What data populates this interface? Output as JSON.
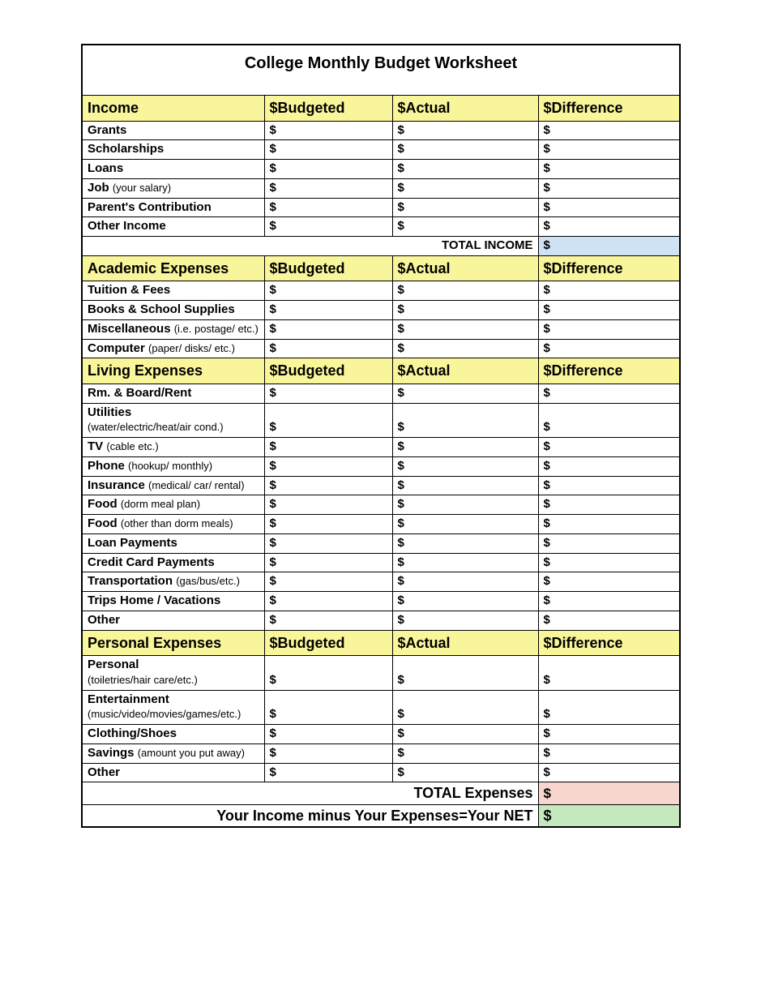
{
  "title": "College Monthly Budget Worksheet",
  "colors": {
    "header_bg": "#f9f59a",
    "total_income_bg": "#cfe2f3",
    "total_expense_bg": "#f8d6d0",
    "net_bg": "#c5e8bf",
    "border": "#000000"
  },
  "column_headers": {
    "budgeted": "$Budgeted",
    "actual": "$Actual",
    "difference": "$Difference"
  },
  "currency_symbol": "$",
  "sections": [
    {
      "name": "Income",
      "rows": [
        {
          "label": "Grants",
          "sub": ""
        },
        {
          "label": "Scholarships",
          "sub": ""
        },
        {
          "label": "Loans",
          "sub": ""
        },
        {
          "label": "Job",
          "sub": "(your salary)"
        },
        {
          "label": "Parent's Contribution",
          "sub": ""
        },
        {
          "label": "Other Income",
          "sub": ""
        }
      ]
    },
    {
      "name": "Academic Expenses",
      "rows": [
        {
          "label": "Tuition & Fees",
          "sub": ""
        },
        {
          "label": "Books & School Supplies",
          "sub": ""
        },
        {
          "label": "Miscellaneous",
          "sub": "(i.e. postage/ etc.)"
        },
        {
          "label": "Computer",
          "sub": "(paper/ disks/ etc.)"
        }
      ]
    },
    {
      "name": "Living Expenses",
      "rows": [
        {
          "label": "Rm. & Board/Rent",
          "sub": ""
        },
        {
          "label": "Utilities",
          "sub": "(water/electric/heat/air cond.)",
          "two_line": true
        },
        {
          "label": "TV",
          "sub": "(cable etc.)"
        },
        {
          "label": "Phone",
          "sub": "(hookup/ monthly)"
        },
        {
          "label": "Insurance",
          "sub": "(medical/ car/ rental)"
        },
        {
          "label": "Food",
          "sub": "(dorm meal plan)"
        },
        {
          "label": "Food",
          "sub": "(other than dorm meals)"
        },
        {
          "label": "Loan Payments",
          "sub": ""
        },
        {
          "label": "Credit Card Payments",
          "sub": ""
        },
        {
          "label": "Transportation",
          "sub": "(gas/bus/etc.)"
        },
        {
          "label": "Trips Home / Vacations",
          "sub": ""
        },
        {
          "label": "Other",
          "sub": ""
        }
      ]
    },
    {
      "name": "Personal Expenses",
      "rows": [
        {
          "label": "Personal",
          "sub": "(toiletries/hair care/etc.)",
          "two_line": true
        },
        {
          "label": "Entertainment",
          "sub": "(music/video/movies/games/etc.)",
          "two_line": true
        },
        {
          "label": "Clothing/Shoes",
          "sub": ""
        },
        {
          "label": "Savings",
          "sub": "(amount you put away)"
        },
        {
          "label": "Other",
          "sub": ""
        }
      ]
    }
  ],
  "totals": {
    "income_label": "TOTAL INCOME",
    "income_value": "$",
    "expenses_label": "TOTAL Expenses",
    "expenses_value": "$",
    "net_label": "Your Income minus Your Expenses=Your NET",
    "net_value": "$"
  }
}
